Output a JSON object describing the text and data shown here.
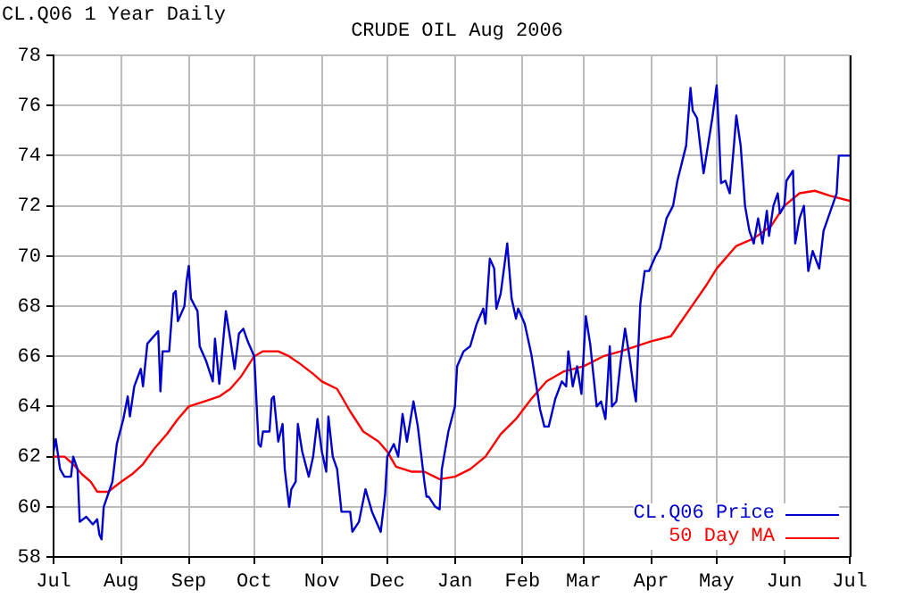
{
  "chart_data": {
    "type": "line",
    "title": "CRUDE OIL Aug 2006",
    "subtitle": "CL.Q06 1 Year Daily",
    "xlim": [
      "2005-07-01",
      "2006-07-01"
    ],
    "xticks": [
      {
        "value": "2005-07-01",
        "label": "Jul"
      },
      {
        "value": "2005-08-01",
        "label": "Aug"
      },
      {
        "value": "2005-09-01",
        "label": "Sep"
      },
      {
        "value": "2005-10-01",
        "label": "Oct"
      },
      {
        "value": "2005-11-01",
        "label": "Nov"
      },
      {
        "value": "2005-12-01",
        "label": "Dec"
      },
      {
        "value": "2006-01-01",
        "label": "Jan"
      },
      {
        "value": "2006-02-01",
        "label": "Feb"
      },
      {
        "value": "2006-03-01",
        "label": "Mar"
      },
      {
        "value": "2006-04-01",
        "label": "Apr"
      },
      {
        "value": "2006-05-01",
        "label": "May"
      },
      {
        "value": "2006-06-01",
        "label": "Jun"
      },
      {
        "value": "2006-07-01",
        "label": "Jul"
      }
    ],
    "ylim": [
      58,
      78
    ],
    "yticks": [
      58,
      60,
      62,
      64,
      66,
      68,
      70,
      72,
      74,
      76,
      78
    ],
    "grid": true,
    "legend": "bottom right",
    "marker": "none",
    "line_style": "solid",
    "series": [
      {
        "name": "CL.Q06 Price",
        "color": "#0000cc",
        "x": [
          "2005-07-01",
          "2005-07-02",
          "2005-07-04",
          "2005-07-06",
          "2005-07-09",
          "2005-07-10",
          "2005-07-12",
          "2005-07-13",
          "2005-07-16",
          "2005-07-19",
          "2005-07-21",
          "2005-07-22",
          "2005-07-23",
          "2005-07-24",
          "2005-07-26",
          "2005-07-28",
          "2005-07-30",
          "2005-08-02",
          "2005-08-04",
          "2005-08-05",
          "2005-08-07",
          "2005-08-10",
          "2005-08-11",
          "2005-08-13",
          "2005-08-17",
          "2005-08-18",
          "2005-08-19",
          "2005-08-20",
          "2005-08-23",
          "2005-08-25",
          "2005-08-26",
          "2005-08-27",
          "2005-08-30",
          "2005-08-31",
          "2005-09-01",
          "2005-09-02",
          "2005-09-05",
          "2005-09-06",
          "2005-09-09",
          "2005-09-12",
          "2005-09-13",
          "2005-09-15",
          "2005-09-18",
          "2005-09-20",
          "2005-09-22",
          "2005-09-24",
          "2005-09-26",
          "2005-09-28",
          "2005-10-01",
          "2005-10-03",
          "2005-10-04",
          "2005-10-05",
          "2005-10-08",
          "2005-10-09",
          "2005-10-10",
          "2005-10-12",
          "2005-10-14",
          "2005-10-15",
          "2005-10-17",
          "2005-10-18",
          "2005-10-20",
          "2005-10-21",
          "2005-10-23",
          "2005-10-26",
          "2005-10-28",
          "2005-10-30",
          "2005-11-01",
          "2005-11-03",
          "2005-11-04",
          "2005-11-06",
          "2005-11-08",
          "2005-11-10",
          "2005-11-14",
          "2005-11-15",
          "2005-11-18",
          "2005-11-21",
          "2005-11-24",
          "2005-11-28",
          "2005-11-30",
          "2005-12-01",
          "2005-12-04",
          "2005-12-06",
          "2005-12-08",
          "2005-12-10",
          "2005-12-13",
          "2005-12-15",
          "2005-12-18",
          "2005-12-19",
          "2005-12-20",
          "2005-12-23",
          "2005-12-25",
          "2005-12-26",
          "2005-12-29",
          "2006-01-01",
          "2006-01-02",
          "2006-01-05",
          "2006-01-08",
          "2006-01-11",
          "2006-01-14",
          "2006-01-15",
          "2006-01-17",
          "2006-01-19",
          "2006-01-20",
          "2006-01-22",
          "2006-01-25",
          "2006-01-27",
          "2006-01-29",
          "2006-01-30",
          "2006-02-02",
          "2006-02-05",
          "2006-02-09",
          "2006-02-11",
          "2006-02-13",
          "2006-02-16",
          "2006-02-19",
          "2006-02-21",
          "2006-02-22",
          "2006-02-24",
          "2006-02-26",
          "2006-02-28",
          "2006-03-02",
          "2006-03-04",
          "2006-03-07",
          "2006-03-09",
          "2006-03-11",
          "2006-03-13",
          "2006-03-14",
          "2006-03-16",
          "2006-03-18",
          "2006-03-20",
          "2006-03-22",
          "2006-03-24",
          "2006-03-25",
          "2006-03-26",
          "2006-03-27",
          "2006-03-29",
          "2006-03-31",
          "2006-04-03",
          "2006-04-05",
          "2006-04-08",
          "2006-04-11",
          "2006-04-13",
          "2006-04-17",
          "2006-04-19",
          "2006-04-20",
          "2006-04-22",
          "2006-04-24",
          "2006-04-25",
          "2006-04-27",
          "2006-04-29",
          "2006-05-01",
          "2006-05-02",
          "2006-05-03",
          "2006-05-05",
          "2006-05-07",
          "2006-05-09",
          "2006-05-10",
          "2006-05-12",
          "2006-05-14",
          "2006-05-16",
          "2006-05-18",
          "2006-05-20",
          "2006-05-22",
          "2006-05-24",
          "2006-05-25",
          "2006-05-27",
          "2006-05-29",
          "2006-05-30",
          "2006-06-01",
          "2006-06-02",
          "2006-06-05",
          "2006-06-06",
          "2006-06-08",
          "2006-06-10",
          "2006-06-12",
          "2006-06-14",
          "2006-06-17",
          "2006-06-19",
          "2006-06-21",
          "2006-06-23",
          "2006-06-25",
          "2006-06-26",
          "2006-07-01"
        ],
        "values": [
          62.2,
          62.7,
          61.5,
          61.2,
          61.2,
          62.0,
          61.5,
          59.4,
          59.6,
          59.3,
          59.5,
          58.9,
          58.7,
          60.0,
          60.5,
          61.0,
          62.5,
          63.5,
          64.4,
          63.6,
          64.8,
          65.5,
          64.8,
          66.5,
          66.9,
          67.0,
          64.6,
          66.2,
          66.2,
          68.5,
          68.6,
          67.4,
          68.0,
          69.0,
          69.6,
          68.3,
          67.8,
          66.4,
          65.8,
          65.0,
          66.7,
          64.9,
          67.8,
          66.7,
          65.5,
          66.9,
          67.1,
          66.6,
          66.0,
          62.5,
          62.4,
          63.0,
          63.0,
          64.3,
          64.4,
          62.6,
          63.3,
          61.5,
          60.0,
          60.7,
          61.0,
          63.3,
          62.2,
          61.2,
          62.0,
          63.5,
          62.2,
          61.4,
          63.6,
          62.0,
          61.5,
          59.8,
          59.8,
          59.0,
          59.4,
          60.7,
          59.8,
          59.0,
          60.5,
          62.0,
          62.5,
          62.0,
          63.7,
          62.6,
          64.2,
          63.2,
          61.0,
          60.4,
          60.4,
          60.0,
          59.9,
          61.5,
          63.0,
          64.0,
          65.6,
          66.2,
          66.4,
          67.3,
          67.9,
          67.3,
          69.9,
          69.5,
          67.9,
          68.5,
          70.5,
          68.3,
          67.5,
          67.9,
          67.3,
          66.1,
          63.9,
          63.2,
          63.2,
          64.3,
          65.0,
          64.8,
          66.2,
          64.8,
          65.6,
          64.5,
          67.6,
          66.5,
          64.0,
          64.2,
          63.5,
          66.4,
          64.0,
          64.2,
          65.8,
          67.1,
          66.0,
          64.7,
          64.2,
          66.2,
          68.1,
          69.4,
          69.4,
          70.0,
          70.3,
          71.5,
          72.0,
          73.0,
          74.4,
          76.7,
          75.8,
          75.5,
          74.0,
          73.3,
          74.4,
          75.5,
          76.8,
          75.0,
          72.9,
          73.0,
          72.5,
          74.5,
          75.6,
          74.4,
          72.0,
          71.0,
          70.5,
          71.5,
          70.5,
          71.8,
          70.8,
          72.0,
          72.5,
          71.7,
          72.0,
          73.0,
          73.4,
          70.5,
          71.5,
          72.0,
          69.4,
          70.2,
          69.5,
          71.0,
          71.5,
          72.0,
          72.5,
          74.0,
          74.0
        ]
      },
      {
        "name": "50 Day MA",
        "color": "#ff0000",
        "x": [
          "2005-07-01",
          "2005-07-06",
          "2005-07-10",
          "2005-07-14",
          "2005-07-18",
          "2005-07-21",
          "2005-07-26",
          "2005-08-01",
          "2005-08-06",
          "2005-08-11",
          "2005-08-16",
          "2005-08-22",
          "2005-08-27",
          "2005-09-01",
          "2005-09-08",
          "2005-09-15",
          "2005-09-20",
          "2005-09-25",
          "2005-10-01",
          "2005-10-05",
          "2005-10-12",
          "2005-10-17",
          "2005-10-22",
          "2005-10-28",
          "2005-11-01",
          "2005-11-08",
          "2005-11-14",
          "2005-11-20",
          "2005-11-27",
          "2005-12-01",
          "2005-12-05",
          "2005-12-12",
          "2005-12-18",
          "2005-12-25",
          "2006-01-01",
          "2006-01-08",
          "2006-01-15",
          "2006-01-22",
          "2006-01-29",
          "2006-02-05",
          "2006-02-12",
          "2006-02-20",
          "2006-03-01",
          "2006-03-10",
          "2006-03-18",
          "2006-04-01",
          "2006-04-10",
          "2006-04-18",
          "2006-04-26",
          "2006-05-01",
          "2006-05-10",
          "2006-05-18",
          "2006-05-26",
          "2006-06-01",
          "2006-06-08",
          "2006-06-15",
          "2006-06-22",
          "2006-07-01"
        ],
        "values": [
          62.0,
          62.0,
          61.7,
          61.3,
          61.0,
          60.6,
          60.6,
          61.0,
          61.3,
          61.7,
          62.3,
          62.9,
          63.5,
          64.0,
          64.2,
          64.4,
          64.7,
          65.2,
          66.0,
          66.2,
          66.2,
          66.0,
          65.7,
          65.3,
          65.0,
          64.7,
          63.8,
          63.0,
          62.6,
          62.2,
          61.6,
          61.4,
          61.4,
          61.1,
          61.2,
          61.5,
          62.0,
          62.9,
          63.5,
          64.3,
          65.0,
          65.4,
          65.6,
          66.0,
          66.2,
          66.6,
          66.8,
          67.8,
          68.8,
          69.5,
          70.4,
          70.7,
          71.2,
          72.0,
          72.5,
          72.6,
          72.4,
          72.2
        ]
      }
    ]
  }
}
